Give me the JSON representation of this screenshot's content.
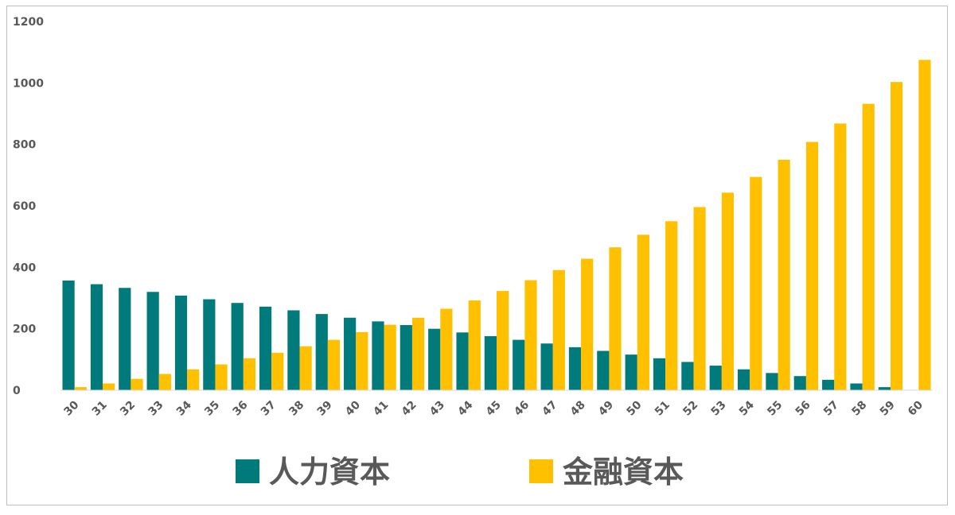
{
  "chart_data": {
    "type": "bar",
    "categories": [
      "30",
      "31",
      "32",
      "33",
      "34",
      "35",
      "36",
      "37",
      "38",
      "39",
      "40",
      "41",
      "42",
      "43",
      "44",
      "45",
      "46",
      "47",
      "48",
      "49",
      "50",
      "51",
      "52",
      "53",
      "54",
      "55",
      "56",
      "57",
      "58",
      "59",
      "60"
    ],
    "series": [
      {
        "name": "人力資本",
        "color": "#007a7a",
        "values": [
          357,
          345,
          333,
          320,
          308,
          296,
          284,
          272,
          260,
          248,
          236,
          224,
          212,
          200,
          188,
          176,
          164,
          152,
          140,
          128,
          116,
          104,
          92,
          80,
          68,
          56,
          46,
          34,
          22,
          10,
          0
        ]
      },
      {
        "name": "金融資本",
        "color": "#ffc000",
        "values": [
          10,
          22,
          37,
          53,
          68,
          84,
          104,
          122,
          143,
          164,
          189,
          213,
          236,
          265,
          292,
          323,
          358,
          391,
          428,
          465,
          506,
          550,
          596,
          643,
          694,
          750,
          808,
          868,
          932,
          1003,
          1075
        ]
      }
    ],
    "yticks": [
      "0",
      "200",
      "400",
      "600",
      "800",
      "1000",
      "1200"
    ],
    "ylim": [
      0,
      1200
    ],
    "grid": false,
    "legend_position": "bottom"
  }
}
